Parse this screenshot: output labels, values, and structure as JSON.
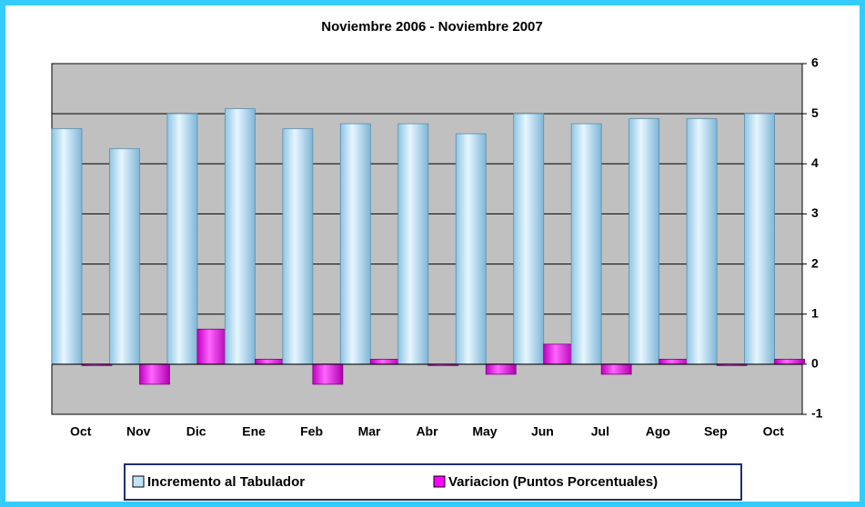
{
  "chart_data": {
    "type": "bar",
    "title": "Noviembre 2006 - Noviembre 2007",
    "categories": [
      "Oct",
      "Nov",
      "Dic",
      "Ene",
      "Feb",
      "Mar",
      "Abr",
      "May",
      "Jun",
      "Jul",
      "Ago",
      "Sep",
      "Oct"
    ],
    "series": [
      {
        "name": "Incremento al Tabulador",
        "color": "#bfe4f7",
        "values": [
          4.7,
          4.3,
          5.0,
          5.1,
          4.7,
          4.8,
          4.8,
          4.6,
          5.0,
          4.8,
          4.9,
          4.9,
          5.0
        ]
      },
      {
        "name": "Variacion (Puntos Porcentuales)",
        "color": "#ff00ff",
        "values": [
          0,
          -0.4,
          0.7,
          0.1,
          -0.4,
          0.1,
          0,
          -0.2,
          0.4,
          -0.2,
          0.1,
          0,
          0.1
        ]
      }
    ],
    "ylim": [
      -1,
      6
    ],
    "yticks": [
      -1,
      0,
      1,
      2,
      3,
      4,
      5,
      6
    ],
    "grid": true,
    "legend": "bottom"
  }
}
